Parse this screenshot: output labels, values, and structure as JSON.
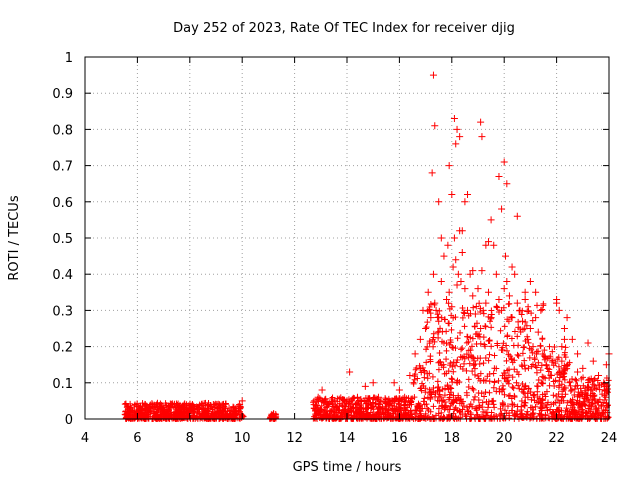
{
  "chart_data": {
    "type": "scatter",
    "title": "Day 252 of 2023, Rate Of TEC Index for receiver djig",
    "xlabel": "GPS time / hours",
    "ylabel": "ROTI / TECUs",
    "xlim": [
      4,
      24
    ],
    "ylim": [
      0,
      1
    ],
    "xticks": [
      "4",
      "6",
      "8",
      "10",
      "12",
      "14",
      "16",
      "18",
      "20",
      "22",
      "24"
    ],
    "yticks": [
      "0",
      "0.1",
      "0.2",
      "0.3",
      "0.4",
      "0.5",
      "0.6",
      "0.7",
      "0.8",
      "0.9",
      "1"
    ],
    "grid": true,
    "marker": "+",
    "color": "#ff0000",
    "series": [
      {
        "x": [
          5.55,
          5.7,
          5.9,
          6.1,
          6.3,
          6.5,
          6.7,
          6.9,
          7.1,
          7.3,
          7.5,
          7.7,
          7.9,
          8.1,
          8.3,
          8.5,
          8.7,
          8.9,
          9.1,
          9.3,
          9.5,
          9.7,
          9.9,
          10.0,
          11.15,
          11.2,
          12.75,
          12.9,
          13.05,
          13.3,
          13.6,
          13.9,
          14.1,
          14.4,
          14.7,
          15.0,
          15.3,
          15.6,
          15.8,
          16.0,
          16.2,
          16.4,
          16.6,
          16.8,
          16.9,
          17.0,
          17.1,
          17.2,
          17.3,
          17.35,
          17.4,
          17.5,
          17.6,
          17.7,
          17.8,
          17.85,
          17.9,
          18.0,
          18.05,
          18.1,
          18.15,
          18.2,
          18.25,
          18.3,
          18.35,
          18.4,
          18.5,
          18.6,
          18.7,
          18.8,
          18.9,
          19.0,
          19.1,
          19.15,
          19.2,
          19.3,
          19.4,
          19.5,
          19.6,
          19.7,
          19.8,
          19.9,
          20.0,
          20.05,
          20.1,
          20.2,
          20.3,
          20.4,
          20.5,
          20.6,
          20.7,
          20.8,
          20.9,
          21.0,
          21.1,
          21.2,
          21.3,
          21.4,
          21.6,
          21.8,
          22.0,
          22.1,
          22.2,
          22.3,
          22.4,
          22.6,
          22.8,
          23.0,
          23.2,
          23.4,
          23.6,
          23.8,
          23.9,
          24.0,
          17.3,
          17.35,
          17.25,
          18.1,
          18.15,
          18.2,
          18.3,
          19.1,
          19.15,
          18.5,
          18.6,
          19.8,
          20.0,
          20.1,
          20.5,
          19.5,
          19.4,
          17.9,
          18.0,
          18.4,
          17.5,
          19.9,
          20.3,
          21.2,
          22.0,
          22.3,
          22.8,
          23.9,
          14.0,
          14.5,
          15.2,
          15.9,
          16.8,
          13.0,
          17.6,
          18.8,
          19.3,
          20.8,
          21.0,
          22.2,
          23.3
        ],
        "y": [
          0.02,
          0.01,
          0.02,
          0.01,
          0.04,
          0.02,
          0.01,
          0.03,
          0.02,
          0.01,
          0.02,
          0.03,
          0.02,
          0.04,
          0.02,
          0.03,
          0.02,
          0.04,
          0.03,
          0.02,
          0.03,
          0.02,
          0.04,
          0.05,
          0.01,
          0.015,
          0.03,
          0.06,
          0.08,
          0.04,
          0.03,
          0.05,
          0.13,
          0.06,
          0.09,
          0.1,
          0.05,
          0.04,
          0.1,
          0.08,
          0.06,
          0.12,
          0.18,
          0.22,
          0.3,
          0.25,
          0.35,
          0.28,
          0.4,
          0.32,
          0.3,
          0.27,
          0.38,
          0.45,
          0.33,
          0.48,
          0.35,
          0.31,
          0.42,
          0.5,
          0.44,
          0.37,
          0.4,
          0.52,
          0.38,
          0.46,
          0.36,
          0.3,
          0.4,
          0.34,
          0.29,
          0.36,
          0.25,
          0.41,
          0.3,
          0.32,
          0.35,
          0.28,
          0.48,
          0.4,
          0.33,
          0.3,
          0.36,
          0.45,
          0.38,
          0.34,
          0.28,
          0.4,
          0.32,
          0.3,
          0.27,
          0.33,
          0.22,
          0.25,
          0.2,
          0.28,
          0.24,
          0.3,
          0.15,
          0.12,
          0.33,
          0.3,
          0.2,
          0.25,
          0.28,
          0.22,
          0.18,
          0.14,
          0.21,
          0.16,
          0.12,
          0.1,
          0.15,
          0.18,
          0.95,
          0.81,
          0.68,
          0.83,
          0.76,
          0.8,
          0.78,
          0.82,
          0.78,
          0.6,
          0.62,
          0.67,
          0.71,
          0.65,
          0.56,
          0.55,
          0.49,
          0.7,
          0.62,
          0.52,
          0.6,
          0.58,
          0.42,
          0.35,
          0.32,
          0.22,
          0.13,
          0.09,
          0.05,
          0.02,
          0.06,
          0.03,
          0.14,
          0.02,
          0.5,
          0.41,
          0.48,
          0.35,
          0.38,
          0.16,
          0.08
        ]
      }
    ]
  }
}
